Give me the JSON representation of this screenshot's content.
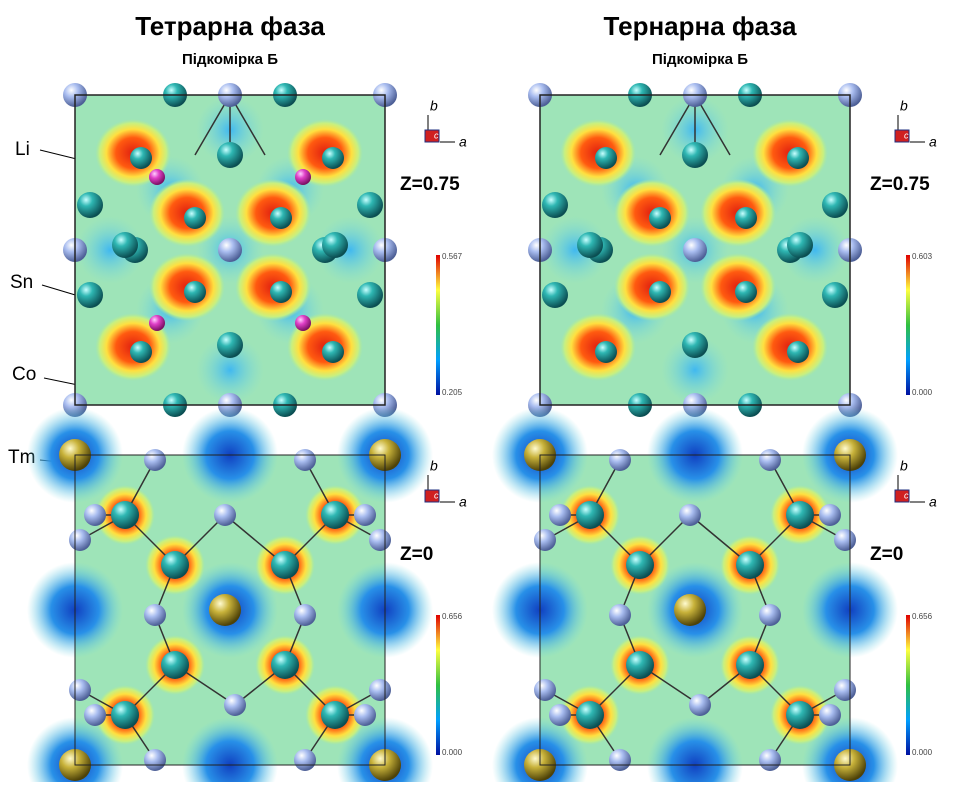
{
  "columns": [
    {
      "title": "Тетрарна фаза",
      "subtitle": "Підкомірка Б"
    },
    {
      "title": "Тернарна фаза",
      "subtitle": "Підкомірка Б"
    }
  ],
  "panels": [
    {
      "z": "Z=0.75",
      "axes": [
        "b",
        "c",
        "a"
      ],
      "scale_max": "0.567",
      "scale_min": "0.205"
    },
    {
      "z": "Z=0.75",
      "axes": [
        "b",
        "c",
        "a"
      ],
      "scale_max": "0.603",
      "scale_min": "0.000"
    },
    {
      "z": "Z=0",
      "axes": [
        "b",
        "c",
        "a"
      ],
      "scale_max": "0.656",
      "scale_min": "0.000"
    },
    {
      "z": "Z=0",
      "axes": [
        "b",
        "c",
        "a"
      ],
      "scale_max": "0.656",
      "scale_min": "0.000"
    }
  ],
  "atom_labels": [
    "Li",
    "Sn",
    "Co",
    "Tm"
  ]
}
